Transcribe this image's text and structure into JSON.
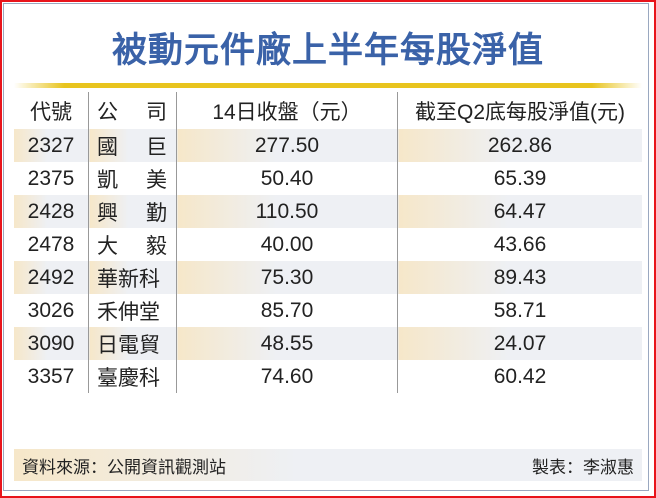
{
  "title": "被動元件廠上半年每股淨值",
  "headers": {
    "code": "代號",
    "company": [
      "公",
      "司"
    ],
    "close": "14日收盤（元）",
    "nav": "截至Q2底每股淨值(元)"
  },
  "rows": [
    {
      "code": "2327",
      "company": "國巨",
      "close": "277.50",
      "nav": "262.86"
    },
    {
      "code": "2375",
      "company": "凱美",
      "close": "50.40",
      "nav": "65.39"
    },
    {
      "code": "2428",
      "company": "興勤",
      "close": "110.50",
      "nav": "64.47"
    },
    {
      "code": "2478",
      "company": "大毅",
      "close": "40.00",
      "nav": "43.66"
    },
    {
      "code": "2492",
      "company": "華新科",
      "close": "75.30",
      "nav": "89.43"
    },
    {
      "code": "3026",
      "company": "禾伸堂",
      "close": "85.70",
      "nav": "58.71"
    },
    {
      "code": "3090",
      "company": "日電貿",
      "close": "48.55",
      "nav": "24.07"
    },
    {
      "code": "3357",
      "company": "臺慶科",
      "close": "74.60",
      "nav": "60.42"
    }
  ],
  "footer": {
    "source": "資料來源：公開資訊觀測站",
    "author": "製表：李淑惠"
  },
  "colors": {
    "title": "#3a62a8",
    "border": "#e8141b",
    "rule": "#e8c41e",
    "highlight": "#f6e7c9"
  }
}
